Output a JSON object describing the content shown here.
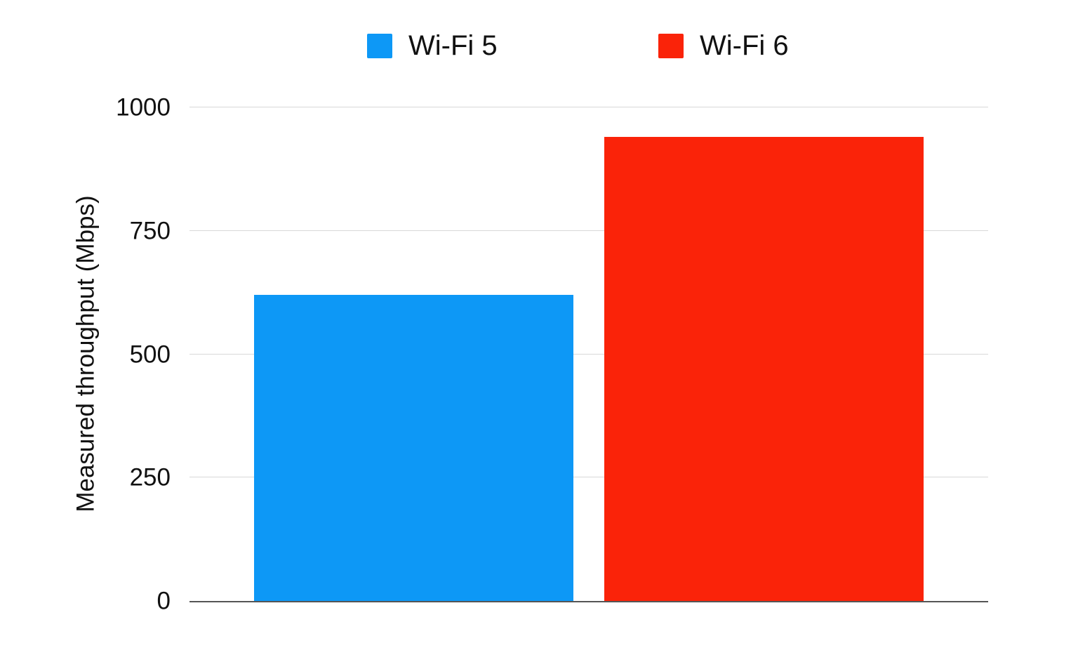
{
  "chart_data": {
    "type": "bar",
    "title": "",
    "categories": [
      "Wi-Fi 5",
      "Wi-Fi 6"
    ],
    "values": [
      620,
      940
    ],
    "unit": "Mbps",
    "colors": [
      "#0D98F6",
      "#FA2309"
    ],
    "ylabel": "Measured throughput (Mbps)",
    "xlabel": "",
    "ylim": [
      0,
      1000
    ],
    "yticks": [
      0,
      250,
      500,
      750,
      1000
    ],
    "grid": true,
    "legend": {
      "position": "top",
      "entries": [
        "Wi-Fi 5",
        "Wi-Fi 6"
      ]
    }
  },
  "colors": {
    "background": "#FFFFFF",
    "wifi5_blue": "#0D98F6",
    "wifi6_red": "#FA2309",
    "gridline": "#D8D8D8",
    "axis_line": "#555555",
    "text": "#111111"
  }
}
